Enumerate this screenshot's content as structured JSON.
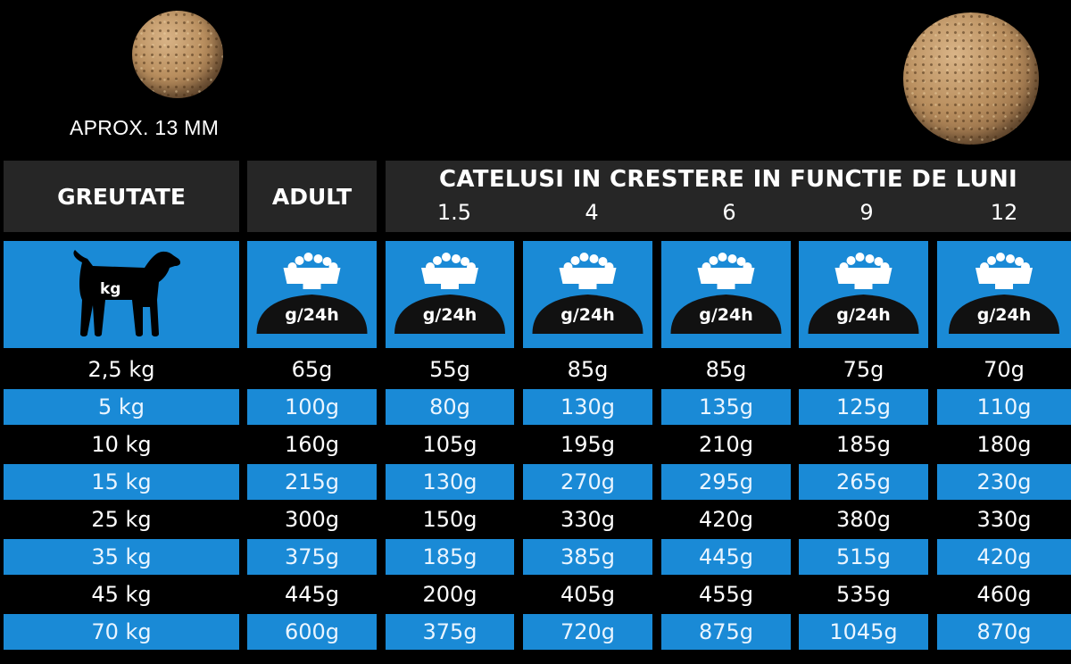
{
  "size_label": "APROX. 13 MM",
  "headers": {
    "weight": "GREUTATE",
    "adult": "ADULT",
    "puppies": "CATELUSI IN CRESTERE IN FUNCTIE DE LUNI",
    "months": [
      "1.5",
      "4",
      "6",
      "9",
      "12"
    ]
  },
  "icons": {
    "weight_unit": "kg",
    "ration_unit": "g/24h"
  },
  "colors": {
    "accent_blue": "#1a8ad6",
    "header_gray": "#262626",
    "background": "#000000"
  },
  "table": {
    "rows": [
      {
        "weight": "2,5 kg",
        "values": [
          "65g",
          "55g",
          "85g",
          "85g",
          "75g",
          "70g"
        ]
      },
      {
        "weight": "5 kg",
        "values": [
          "100g",
          "80g",
          "130g",
          "135g",
          "125g",
          "110g"
        ]
      },
      {
        "weight": "10 kg",
        "values": [
          "160g",
          "105g",
          "195g",
          "210g",
          "185g",
          "180g"
        ]
      },
      {
        "weight": "15 kg",
        "values": [
          "215g",
          "130g",
          "270g",
          "295g",
          "265g",
          "230g"
        ]
      },
      {
        "weight": "25 kg",
        "values": [
          "300g",
          "150g",
          "330g",
          "420g",
          "380g",
          "330g"
        ]
      },
      {
        "weight": "35 kg",
        "values": [
          "375g",
          "185g",
          "385g",
          "445g",
          "515g",
          "420g"
        ]
      },
      {
        "weight": "45 kg",
        "values": [
          "445g",
          "200g",
          "405g",
          "455g",
          "535g",
          "460g"
        ]
      },
      {
        "weight": "70 kg",
        "values": [
          "600g",
          "375g",
          "720g",
          "875g",
          "1045g",
          "870g"
        ]
      }
    ]
  }
}
